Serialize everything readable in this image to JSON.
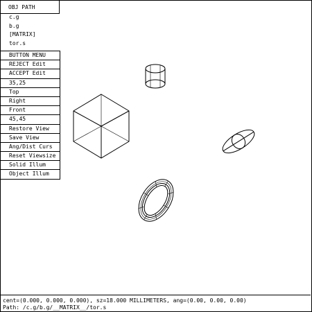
{
  "menu": {
    "title": "OBJ PATH",
    "path_items": [
      "c.g",
      "b.g",
      "[MATRIX]",
      "tor.s"
    ],
    "buttons": [
      "BUTTON MENU",
      "REJECT Edit",
      "ACCEPT Edit",
      "35,25",
      "Top",
      "Right",
      "Front",
      "45,45",
      "Restore View",
      "Save View",
      "Ang/Dist Curs",
      "Reset Viewsize",
      "Solid Illum",
      "Object Illum"
    ]
  },
  "status": {
    "line1": "cent=(0.000, 0.000, 0.000), sz=18.000 MILLIMETERS, ang=(0.00, 0.00, 0.00)",
    "line2": "Path: /c.g/b.g/__MATRIX__/tor.s"
  },
  "scene": {
    "objects": [
      "cube",
      "cylinder",
      "ellipsoid",
      "torus"
    ],
    "line_color": "#000000",
    "background": "#ffffff"
  }
}
